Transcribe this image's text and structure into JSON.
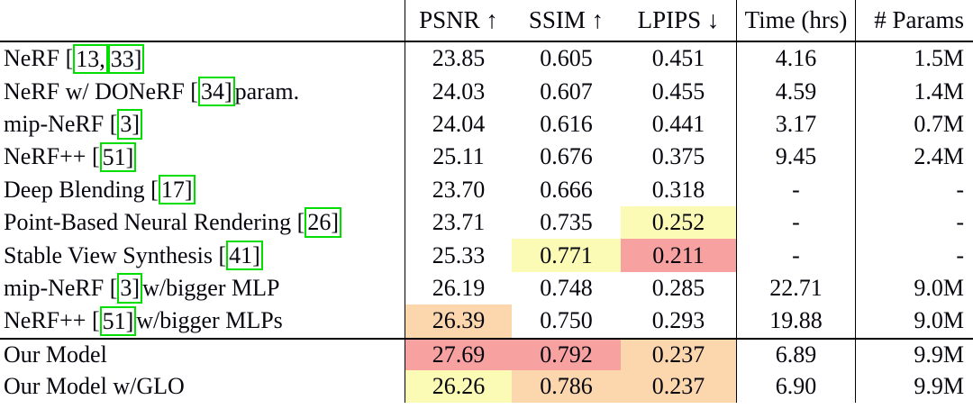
{
  "colors": {
    "rank1_best": "#f8a1a1",
    "rank2_second": "#fcd7ae",
    "rank3_third": "#fbfbb6",
    "citation_box": "#00dd00",
    "border": "#000000",
    "background": "#ffffff"
  },
  "table": {
    "columns": [
      {
        "key": "label",
        "label": ""
      },
      {
        "key": "psnr",
        "label": "PSNR ↑"
      },
      {
        "key": "ssim",
        "label": "SSIM ↑"
      },
      {
        "key": "lpips",
        "label": "LPIPS ↓"
      },
      {
        "key": "time",
        "label": "Time (hrs)"
      },
      {
        "key": "params",
        "label": "# Params"
      }
    ],
    "rows": [
      {
        "label_parts": [
          {
            "text": "NeRF ["
          },
          {
            "text": "13,",
            "cite": true
          },
          {
            "text": "33]",
            "cite": true
          }
        ],
        "psnr": "23.85",
        "ssim": "0.605",
        "lpips": "0.451",
        "time": "4.16",
        "params": "1.5M",
        "highlights": {}
      },
      {
        "label_parts": [
          {
            "text": "NeRF w/ DONeRF ["
          },
          {
            "text": "34]",
            "cite": true
          },
          {
            "text": " param."
          }
        ],
        "psnr": "24.03",
        "ssim": "0.607",
        "lpips": "0.455",
        "time": "4.59",
        "params": "1.4M",
        "highlights": {}
      },
      {
        "label_parts": [
          {
            "text": "mip-NeRF ["
          },
          {
            "text": "3]",
            "cite": true
          }
        ],
        "psnr": "24.04",
        "ssim": "0.616",
        "lpips": "0.441",
        "time": "3.17",
        "params": "0.7M",
        "highlights": {}
      },
      {
        "label_parts": [
          {
            "text": "NeRF++ ["
          },
          {
            "text": "51]",
            "cite": true
          }
        ],
        "psnr": "25.11",
        "ssim": "0.676",
        "lpips": "0.375",
        "time": "9.45",
        "params": "2.4M",
        "highlights": {}
      },
      {
        "label_parts": [
          {
            "text": "Deep Blending ["
          },
          {
            "text": "17]",
            "cite": true
          }
        ],
        "psnr": "23.70",
        "ssim": "0.666",
        "lpips": "0.318",
        "time": "-",
        "params": "-",
        "highlights": {}
      },
      {
        "label_parts": [
          {
            "text": "Point-Based Neural Rendering ["
          },
          {
            "text": "26]",
            "cite": true
          }
        ],
        "psnr": "23.71",
        "ssim": "0.735",
        "lpips": "0.252",
        "time": "-",
        "params": "-",
        "highlights": {
          "lpips": "rank3_third"
        }
      },
      {
        "label_parts": [
          {
            "text": "Stable View Synthesis ["
          },
          {
            "text": "41]",
            "cite": true
          }
        ],
        "psnr": "25.33",
        "ssim": "0.771",
        "lpips": "0.211",
        "time": "-",
        "params": "-",
        "highlights": {
          "ssim": "rank3_third",
          "lpips": "rank1_best"
        }
      },
      {
        "label_parts": [
          {
            "text": "mip-NeRF ["
          },
          {
            "text": "3]",
            "cite": true
          },
          {
            "text": " w/bigger MLP"
          }
        ],
        "psnr": "26.19",
        "ssim": "0.748",
        "lpips": "0.285",
        "time": "22.71",
        "params": "9.0M",
        "highlights": {}
      },
      {
        "label_parts": [
          {
            "text": "NeRF++ ["
          },
          {
            "text": "51]",
            "cite": true
          },
          {
            "text": " w/bigger MLPs"
          }
        ],
        "psnr": "26.39",
        "ssim": "0.750",
        "lpips": "0.293",
        "time": "19.88",
        "params": "9.0M",
        "highlights": {
          "psnr": "rank2_second"
        }
      },
      {
        "label_parts": [
          {
            "text": "Our Model"
          }
        ],
        "psnr": "27.69",
        "ssim": "0.792",
        "lpips": "0.237",
        "time": "6.89",
        "params": "9.9M",
        "highlights": {
          "psnr": "rank1_best",
          "ssim": "rank1_best",
          "lpips": "rank2_second"
        },
        "rule_above": true
      },
      {
        "label_parts": [
          {
            "text": "Our Model w/GLO"
          }
        ],
        "psnr": "26.26",
        "ssim": "0.786",
        "lpips": "0.237",
        "time": "6.90",
        "params": "9.9M",
        "highlights": {
          "psnr": "rank3_third",
          "ssim": "rank2_second",
          "lpips": "rank2_second"
        }
      }
    ]
  }
}
